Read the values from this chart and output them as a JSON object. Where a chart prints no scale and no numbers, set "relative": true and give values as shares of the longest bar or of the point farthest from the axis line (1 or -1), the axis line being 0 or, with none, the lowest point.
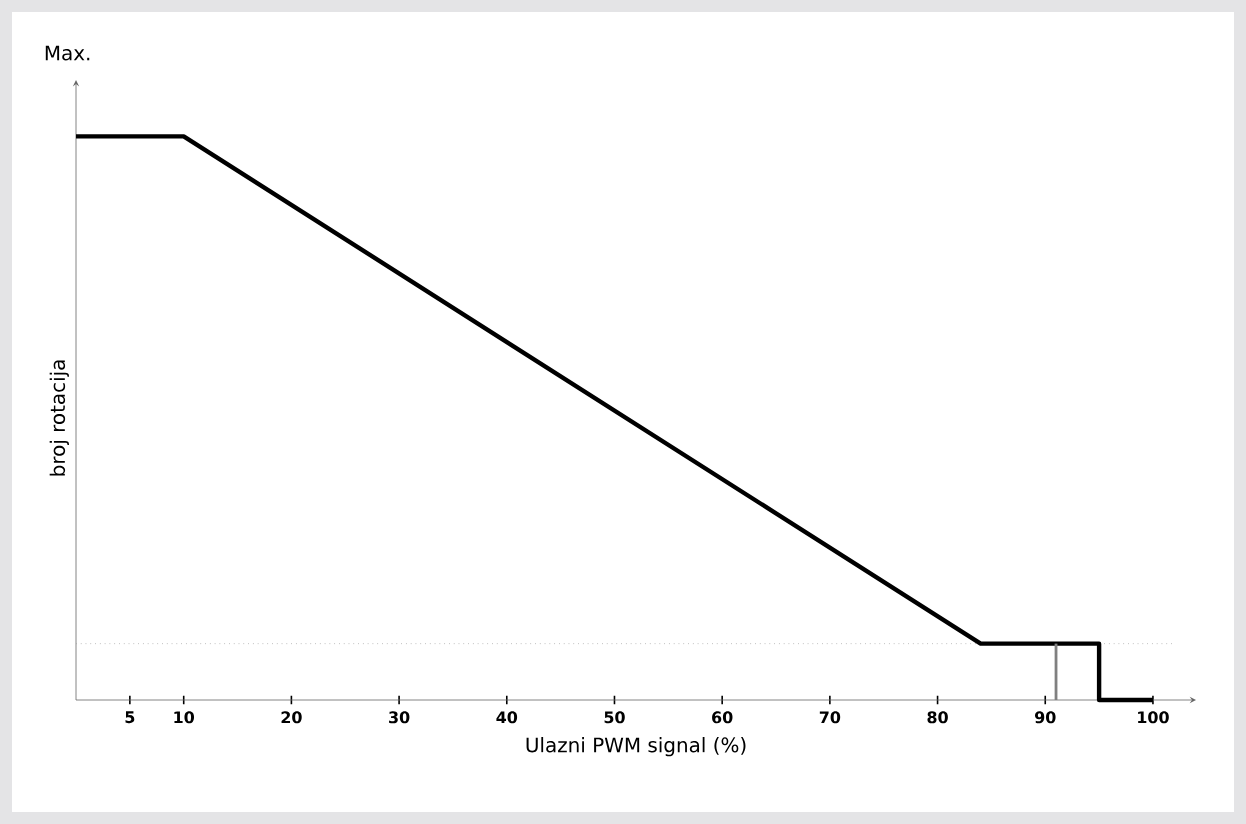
{
  "chart_data": {
    "type": "line",
    "relative": true,
    "xlabel": "Ulazni PWM signal (%)",
    "ylabel": "broj rotacija",
    "annotations": [
      "Max."
    ],
    "xlim": [
      0,
      104
    ],
    "xticks": [
      5,
      10,
      20,
      30,
      40,
      50,
      60,
      70,
      80,
      90,
      100
    ],
    "series": [
      {
        "color": "#000000",
        "x": [
          0,
          10,
          84,
          95,
          95,
          100
        ],
        "values": [
          1,
          1,
          0.1,
          0.1,
          0,
          0
        ]
      },
      {
        "color": "#808080",
        "x": [
          91,
          91
        ],
        "values": [
          0,
          0.1
        ]
      }
    ],
    "ref_lines": [
      {
        "axis": "y",
        "value": 0.1,
        "color": "#a0a0a0",
        "line_style": "dotted"
      }
    ],
    "grid": false,
    "marker": "none",
    "line_style": "solid"
  }
}
